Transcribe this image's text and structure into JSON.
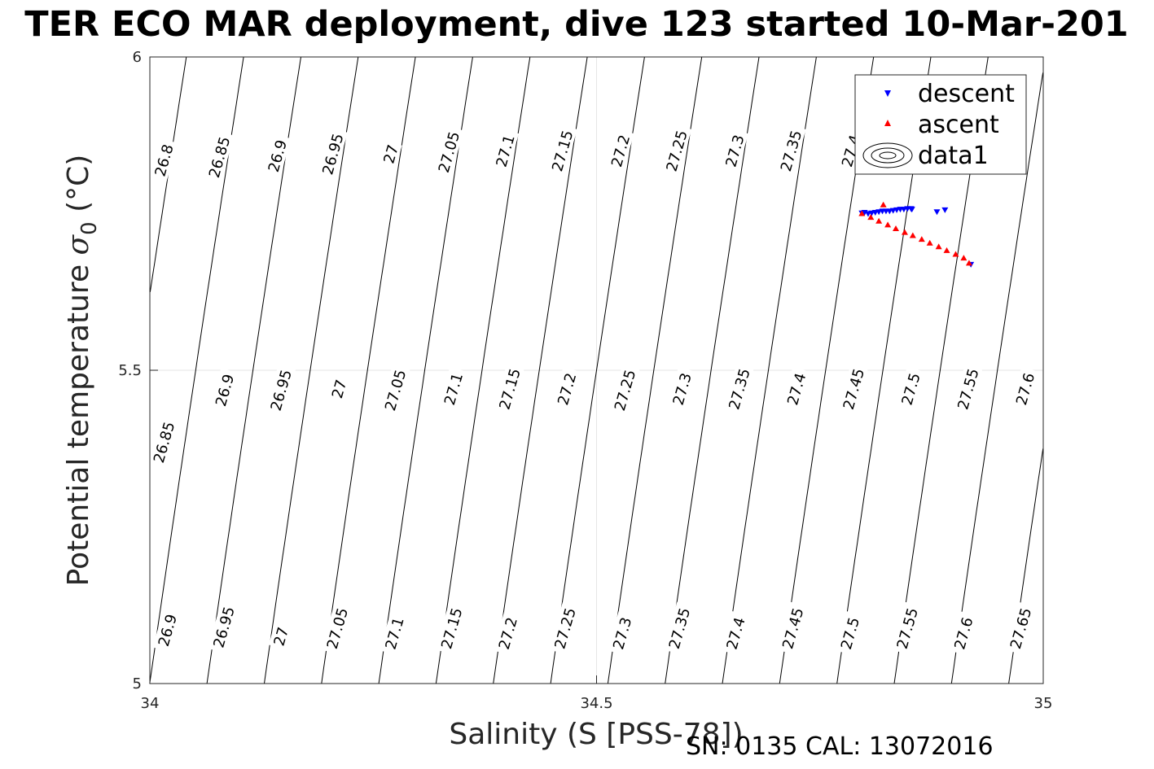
{
  "title": "TER ECO MAR deployment, dive 123 started 10-Mar-201",
  "footer": "SN: 0135  CAL: 13072016",
  "chart_data": {
    "type": "scatter",
    "xlabel": "Salinity (S [PSS-78])",
    "ylabel_text": "Potential temperature ",
    "ylabel_sigma": "σ",
    "ylabel_sub": "0",
    "ylabel_unit": " (°C)",
    "xlim": [
      34,
      35
    ],
    "ylim": [
      5,
      6
    ],
    "xticks": [
      {
        "value": 34,
        "label": "34"
      },
      {
        "value": 34.5,
        "label": "34.5"
      },
      {
        "value": 35,
        "label": "35"
      }
    ],
    "yticks": [
      {
        "value": 5,
        "label": "5"
      },
      {
        "value": 5.5,
        "label": "5.5"
      },
      {
        "value": 6,
        "label": "6"
      }
    ],
    "grid": true,
    "legend_position": "top-right",
    "legend": [
      {
        "label": "descent",
        "marker": "triangle-down",
        "color": "#0000ff"
      },
      {
        "label": "ascent",
        "marker": "triangle-up",
        "color": "#ff0000"
      },
      {
        "label": "data1",
        "marker": "contour",
        "color": "#000000"
      }
    ],
    "density_contours": {
      "levels": [
        26.8,
        26.85,
        26.9,
        26.95,
        27,
        27.05,
        27.1,
        27.15,
        27.2,
        27.25,
        27.3,
        27.35,
        27.4,
        27.45,
        27.5,
        27.55,
        27.6,
        27.65
      ],
      "label_rows": [
        [
          {
            "s": 34.016,
            "t": 5.835,
            "label": "26.8"
          },
          {
            "s": 34.078,
            "t": 5.84,
            "label": "26.85"
          },
          {
            "s": 34.143,
            "t": 5.842,
            "label": "26.9"
          },
          {
            "s": 34.205,
            "t": 5.845,
            "label": "26.95"
          },
          {
            "s": 34.27,
            "t": 5.845,
            "label": "27"
          },
          {
            "s": 34.335,
            "t": 5.848,
            "label": "27.05"
          },
          {
            "s": 34.398,
            "t": 5.85,
            "label": "27.1"
          },
          {
            "s": 34.462,
            "t": 5.85,
            "label": "27.15"
          },
          {
            "s": 34.527,
            "t": 5.85,
            "label": "27.2"
          },
          {
            "s": 34.59,
            "t": 5.85,
            "label": "27.25"
          },
          {
            "s": 34.655,
            "t": 5.85,
            "label": "27.3"
          },
          {
            "s": 34.718,
            "t": 5.85,
            "label": "27.35"
          },
          {
            "s": 34.785,
            "t": 5.85,
            "label": "27.4"
          }
        ],
        [
          {
            "s": 34.016,
            "t": 5.385,
            "label": "26.85"
          },
          {
            "s": 34.084,
            "t": 5.468,
            "label": "26.9"
          },
          {
            "s": 34.147,
            "t": 5.468,
            "label": "26.95"
          },
          {
            "s": 34.212,
            "t": 5.47,
            "label": "27"
          },
          {
            "s": 34.275,
            "t": 5.468,
            "label": "27.05"
          },
          {
            "s": 34.34,
            "t": 5.47,
            "label": "27.1"
          },
          {
            "s": 34.403,
            "t": 5.47,
            "label": "27.15"
          },
          {
            "s": 34.467,
            "t": 5.47,
            "label": "27.2"
          },
          {
            "s": 34.532,
            "t": 5.468,
            "label": "27.25"
          },
          {
            "s": 34.596,
            "t": 5.47,
            "label": "27.3"
          },
          {
            "s": 34.66,
            "t": 5.47,
            "label": "27.35"
          },
          {
            "s": 34.724,
            "t": 5.47,
            "label": "27.4"
          },
          {
            "s": 34.788,
            "t": 5.47,
            "label": "27.45"
          },
          {
            "s": 34.852,
            "t": 5.47,
            "label": "27.5"
          },
          {
            "s": 34.916,
            "t": 5.47,
            "label": "27.55"
          },
          {
            "s": 34.98,
            "t": 5.47,
            "label": "27.6"
          }
        ],
        [
          {
            "s": 34.02,
            "t": 5.085,
            "label": "26.9"
          },
          {
            "s": 34.083,
            "t": 5.09,
            "label": "26.95"
          },
          {
            "s": 34.147,
            "t": 5.075,
            "label": "27"
          },
          {
            "s": 34.21,
            "t": 5.088,
            "label": "27.05"
          },
          {
            "s": 34.274,
            "t": 5.08,
            "label": "27.1"
          },
          {
            "s": 34.338,
            "t": 5.088,
            "label": "27.15"
          },
          {
            "s": 34.401,
            "t": 5.08,
            "label": "27.2"
          },
          {
            "s": 34.465,
            "t": 5.088,
            "label": "27.25"
          },
          {
            "s": 34.529,
            "t": 5.08,
            "label": "27.3"
          },
          {
            "s": 34.593,
            "t": 5.088,
            "label": "27.35"
          },
          {
            "s": 34.656,
            "t": 5.08,
            "label": "27.4"
          },
          {
            "s": 34.72,
            "t": 5.088,
            "label": "27.45"
          },
          {
            "s": 34.784,
            "t": 5.08,
            "label": "27.5"
          },
          {
            "s": 34.848,
            "t": 5.088,
            "label": "27.55"
          },
          {
            "s": 34.911,
            "t": 5.08,
            "label": "27.6"
          },
          {
            "s": 34.975,
            "t": 5.088,
            "label": "27.65"
          }
        ]
      ]
    },
    "series": [
      {
        "name": "descent",
        "marker": "triangle-down",
        "color": "#0000ff",
        "x": [
          34.797,
          34.8,
          34.804,
          34.808,
          34.812,
          34.816,
          34.82,
          34.824,
          34.828,
          34.832,
          34.836,
          34.84,
          34.844,
          34.848,
          34.852,
          34.853,
          34.881,
          34.89,
          34.919
        ],
        "y": [
          5.751,
          5.752,
          5.75,
          5.751,
          5.752,
          5.753,
          5.754,
          5.754,
          5.754,
          5.755,
          5.756,
          5.757,
          5.757,
          5.758,
          5.758,
          5.757,
          5.753,
          5.756,
          5.669
        ]
      },
      {
        "name": "ascent",
        "marker": "triangle-up",
        "color": "#ff0000",
        "x": [
          34.797,
          34.807,
          34.816,
          34.826,
          34.835,
          34.845,
          34.854,
          34.864,
          34.873,
          34.883,
          34.892,
          34.902,
          34.911,
          34.917,
          34.821
        ],
        "y": [
          5.75,
          5.744,
          5.738,
          5.732,
          5.726,
          5.72,
          5.715,
          5.709,
          5.703,
          5.697,
          5.691,
          5.685,
          5.679,
          5.671,
          5.764
        ]
      }
    ]
  }
}
